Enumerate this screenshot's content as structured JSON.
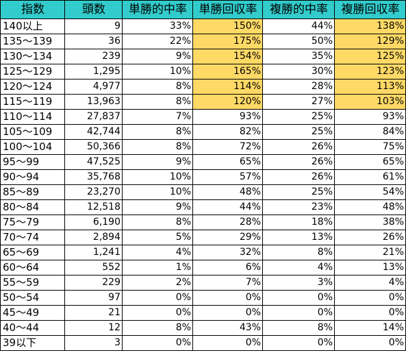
{
  "headers": [
    "指数",
    "頭数",
    "単勝的中率",
    "単勝回収率",
    "複勝的中率",
    "複勝回収率"
  ],
  "highlight_color": "#ffd966",
  "header_color": "#33cccc",
  "rows": [
    {
      "idx": "140以上",
      "count": "9",
      "win_hit": "33%",
      "win_ret": "150%",
      "place_hit": "44%",
      "place_ret": "138%",
      "hl_win": true,
      "hl_place": true
    },
    {
      "idx": "135〜139",
      "count": "36",
      "win_hit": "22%",
      "win_ret": "175%",
      "place_hit": "50%",
      "place_ret": "129%",
      "hl_win": true,
      "hl_place": true
    },
    {
      "idx": "130〜134",
      "count": "239",
      "win_hit": "9%",
      "win_ret": "154%",
      "place_hit": "35%",
      "place_ret": "125%",
      "hl_win": true,
      "hl_place": true
    },
    {
      "idx": "125〜129",
      "count": "1,295",
      "win_hit": "10%",
      "win_ret": "165%",
      "place_hit": "30%",
      "place_ret": "123%",
      "hl_win": true,
      "hl_place": true
    },
    {
      "idx": "120〜124",
      "count": "4,977",
      "win_hit": "8%",
      "win_ret": "114%",
      "place_hit": "28%",
      "place_ret": "113%",
      "hl_win": true,
      "hl_place": true
    },
    {
      "idx": "115〜119",
      "count": "13,963",
      "win_hit": "8%",
      "win_ret": "120%",
      "place_hit": "27%",
      "place_ret": "103%",
      "hl_win": true,
      "hl_place": true
    },
    {
      "idx": "110〜114",
      "count": "27,837",
      "win_hit": "7%",
      "win_ret": "93%",
      "place_hit": "25%",
      "place_ret": "93%",
      "hl_win": false,
      "hl_place": false
    },
    {
      "idx": "105〜109",
      "count": "42,744",
      "win_hit": "8%",
      "win_ret": "82%",
      "place_hit": "25%",
      "place_ret": "84%",
      "hl_win": false,
      "hl_place": false
    },
    {
      "idx": "100〜104",
      "count": "50,366",
      "win_hit": "8%",
      "win_ret": "72%",
      "place_hit": "26%",
      "place_ret": "75%",
      "hl_win": false,
      "hl_place": false
    },
    {
      "idx": "95〜99",
      "count": "47,525",
      "win_hit": "9%",
      "win_ret": "65%",
      "place_hit": "26%",
      "place_ret": "65%",
      "hl_win": false,
      "hl_place": false
    },
    {
      "idx": "90〜94",
      "count": "35,768",
      "win_hit": "10%",
      "win_ret": "57%",
      "place_hit": "26%",
      "place_ret": "61%",
      "hl_win": false,
      "hl_place": false
    },
    {
      "idx": "85〜89",
      "count": "23,270",
      "win_hit": "10%",
      "win_ret": "48%",
      "place_hit": "25%",
      "place_ret": "54%",
      "hl_win": false,
      "hl_place": false
    },
    {
      "idx": "80〜84",
      "count": "12,518",
      "win_hit": "9%",
      "win_ret": "44%",
      "place_hit": "23%",
      "place_ret": "48%",
      "hl_win": false,
      "hl_place": false
    },
    {
      "idx": "75〜79",
      "count": "6,190",
      "win_hit": "8%",
      "win_ret": "28%",
      "place_hit": "18%",
      "place_ret": "38%",
      "hl_win": false,
      "hl_place": false
    },
    {
      "idx": "70〜74",
      "count": "2,894",
      "win_hit": "5%",
      "win_ret": "29%",
      "place_hit": "13%",
      "place_ret": "26%",
      "hl_win": false,
      "hl_place": false
    },
    {
      "idx": "65〜69",
      "count": "1,241",
      "win_hit": "4%",
      "win_ret": "32%",
      "place_hit": "8%",
      "place_ret": "21%",
      "hl_win": false,
      "hl_place": false
    },
    {
      "idx": "60〜64",
      "count": "552",
      "win_hit": "1%",
      "win_ret": "6%",
      "place_hit": "4%",
      "place_ret": "13%",
      "hl_win": false,
      "hl_place": false
    },
    {
      "idx": "55〜59",
      "count": "229",
      "win_hit": "2%",
      "win_ret": "7%",
      "place_hit": "3%",
      "place_ret": "4%",
      "hl_win": false,
      "hl_place": false
    },
    {
      "idx": "50〜54",
      "count": "97",
      "win_hit": "0%",
      "win_ret": "0%",
      "place_hit": "0%",
      "place_ret": "0%",
      "hl_win": false,
      "hl_place": false
    },
    {
      "idx": "45〜49",
      "count": "21",
      "win_hit": "0%",
      "win_ret": "0%",
      "place_hit": "0%",
      "place_ret": "0%",
      "hl_win": false,
      "hl_place": false
    },
    {
      "idx": "40〜44",
      "count": "12",
      "win_hit": "8%",
      "win_ret": "43%",
      "place_hit": "8%",
      "place_ret": "14%",
      "hl_win": false,
      "hl_place": false
    },
    {
      "idx": "39以下",
      "count": "3",
      "win_hit": "0%",
      "win_ret": "0%",
      "place_hit": "0%",
      "place_ret": "0%",
      "hl_win": false,
      "hl_place": false
    }
  ]
}
